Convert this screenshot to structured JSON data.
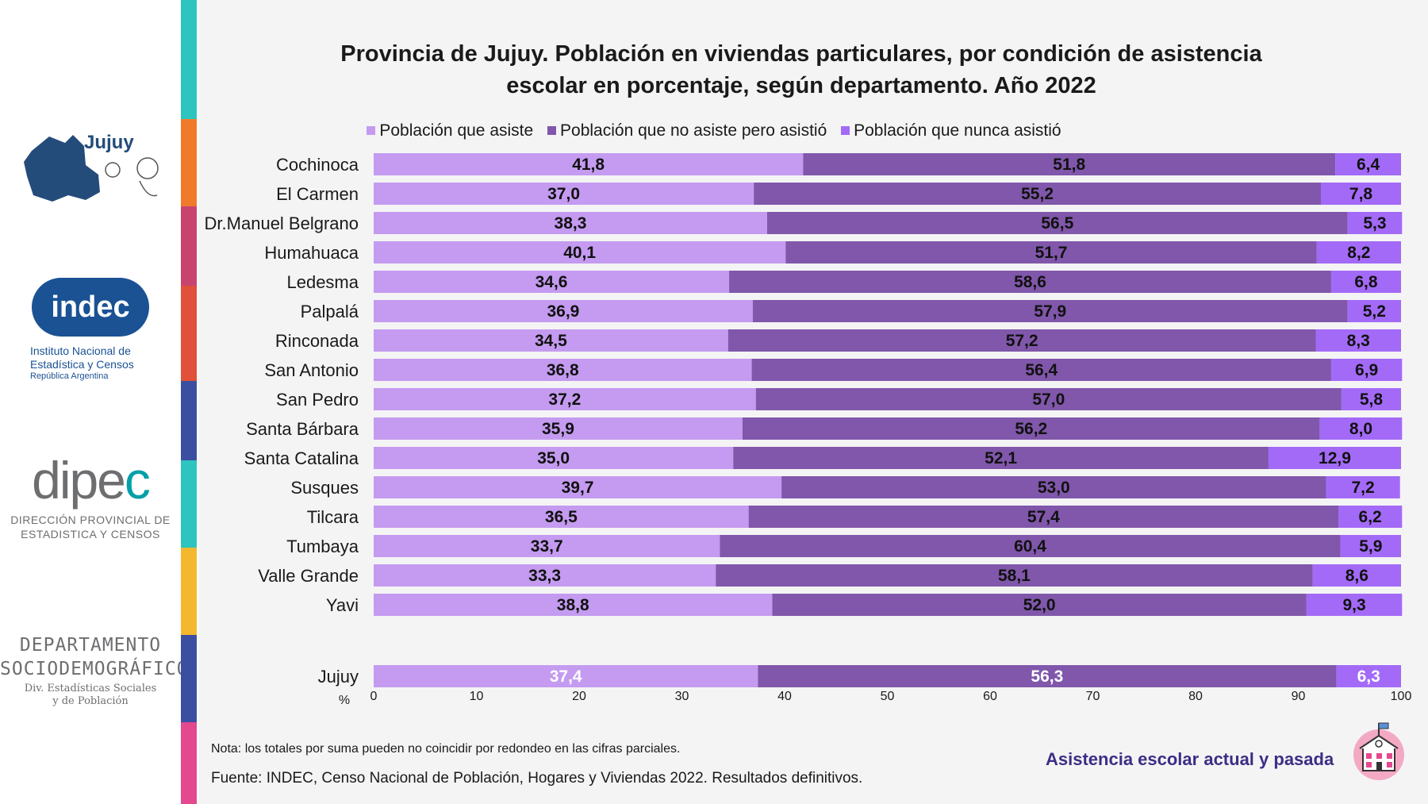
{
  "title_line1": "Provincia de Jujuy. Población en viviendas particulares, por condición de asistencia",
  "title_line2": "escolar en porcentaje, según departamento. Año 2022",
  "legend": [
    {
      "label": "Población que asiste",
      "color": "#c49bf0"
    },
    {
      "label": "Población que no asiste pero asistió",
      "color": "#8057aa"
    },
    {
      "label": "Población que nunca asistió",
      "color": "#a36af7"
    }
  ],
  "logos": {
    "jujuy": "Jujuy",
    "indec": "indec",
    "indec_line1": "Instituto Nacional de",
    "indec_line2": "Estadística y Censos",
    "indec_line3": "República Argentina",
    "dipec_a": "dipe",
    "dipec_b": "c",
    "dipec_line1": "DIRECCIÓN PROVINCIAL DE",
    "dipec_line2": "ESTADISTICA Y CENSOS",
    "depto_line1": "DEPARTAMENTO",
    "depto_line2": "SOCIODEMOGRÁFICO",
    "depto_line3": "Div. Estadísticas Sociales",
    "depto_line4": "y de Población"
  },
  "note": "Nota: los totales por suma pueden no coincidir por redondeo en las cifras parciales.",
  "source": "Fuente: INDEC, Censo Nacional de Población, Hogares y Viviendas 2022. Resultados definitivos.",
  "footer_tag": "Asistencia escolar actual y pasada",
  "chart_data": {
    "type": "bar",
    "orientation": "horizontal",
    "stacked": true,
    "title": "Provincia de Jujuy. Población en viviendas particulares, por condición de asistencia escolar en porcentaje, según departamento. Año 2022",
    "xlabel": "%",
    "xlim": [
      0,
      100
    ],
    "xticks": [
      0,
      10,
      20,
      30,
      40,
      50,
      60,
      70,
      80,
      90,
      100
    ],
    "categories": [
      "Cochinoca",
      "El Carmen",
      "Dr.Manuel Belgrano",
      "Humahuaca",
      "Ledesma",
      "Palpalá",
      "Rinconada",
      "San Antonio",
      "San Pedro",
      "Santa Bárbara",
      "Santa Catalina",
      "Susques",
      "Tilcara",
      "Tumbaya",
      "Valle Grande",
      "Yavi",
      "Jujuy"
    ],
    "series": [
      {
        "name": "Población que asiste",
        "values": [
          41.8,
          37.0,
          38.3,
          40.1,
          34.6,
          36.9,
          34.5,
          36.8,
          37.2,
          35.9,
          35.0,
          39.7,
          36.5,
          33.7,
          33.3,
          38.8,
          37.4
        ]
      },
      {
        "name": "Población que no asiste pero asistió",
        "values": [
          51.8,
          55.2,
          56.5,
          51.7,
          58.6,
          57.9,
          57.2,
          56.4,
          57.0,
          56.2,
          52.1,
          53.0,
          57.4,
          60.4,
          58.1,
          52.0,
          56.3
        ]
      },
      {
        "name": "Población que nunca asistió",
        "values": [
          6.4,
          7.8,
          5.3,
          8.2,
          6.8,
          5.2,
          8.3,
          6.9,
          5.8,
          8.0,
          12.9,
          7.2,
          6.2,
          5.9,
          8.6,
          9.3,
          6.3
        ]
      }
    ],
    "value_labels": [
      [
        "41,8",
        "37,0",
        "38,3",
        "40,1",
        "34,6",
        "36,9",
        "34,5",
        "36,8",
        "37,2",
        "35,9",
        "35,0",
        "39,7",
        "36,5",
        "33,7",
        "33,3",
        "38,8",
        "37,4"
      ],
      [
        "51,8",
        "55,2",
        "56,5",
        "51,7",
        "58,6",
        "57,9",
        "57,2",
        "56,4",
        "57,0",
        "56,2",
        "52,1",
        "53,0",
        "57,4",
        "60,4",
        "58,1",
        "52,0",
        "56,3"
      ],
      [
        "6,4",
        "7,8",
        "5,3",
        "8,2",
        "6,8",
        "5,2",
        "8,3",
        "6,9",
        "5,8",
        "8,0",
        "12,9",
        "7,2",
        "6,2",
        "5,9",
        "8,6",
        "9,3",
        "6,3"
      ]
    ]
  }
}
